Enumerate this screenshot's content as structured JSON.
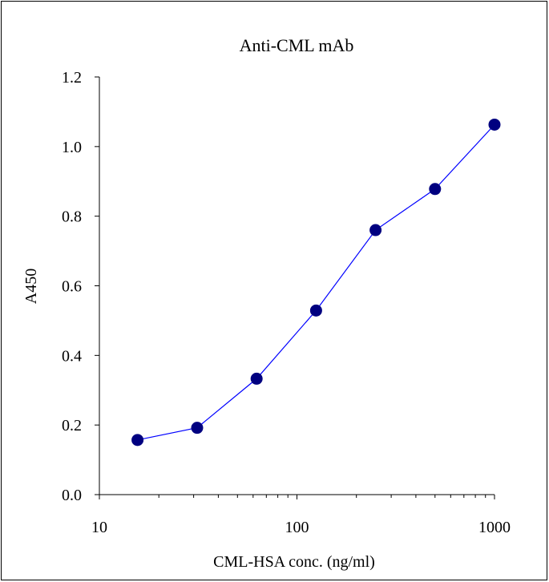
{
  "chart_data": {
    "type": "scatter",
    "title": "Anti-CML mAb",
    "xlabel": "CML-HSA conc. (ng/ml)",
    "ylabel": "A450",
    "x_scale": "log",
    "xlim": [
      10,
      1000
    ],
    "ylim": [
      0.0,
      1.2
    ],
    "x_ticks": [
      "10",
      "100",
      "1000"
    ],
    "y_ticks": [
      "0.0",
      "0.2",
      "0.4",
      "0.6",
      "0.8",
      "1.0",
      "1.2"
    ],
    "grid": false,
    "legend": "none",
    "series": [
      {
        "x": [
          15.6,
          31.25,
          62.5,
          125,
          250,
          500,
          1000
        ],
        "y": [
          0.157,
          0.192,
          0.333,
          0.529,
          0.76,
          0.878,
          1.063
        ],
        "line_color": "#0000ff",
        "marker_color": "#000080"
      }
    ]
  }
}
